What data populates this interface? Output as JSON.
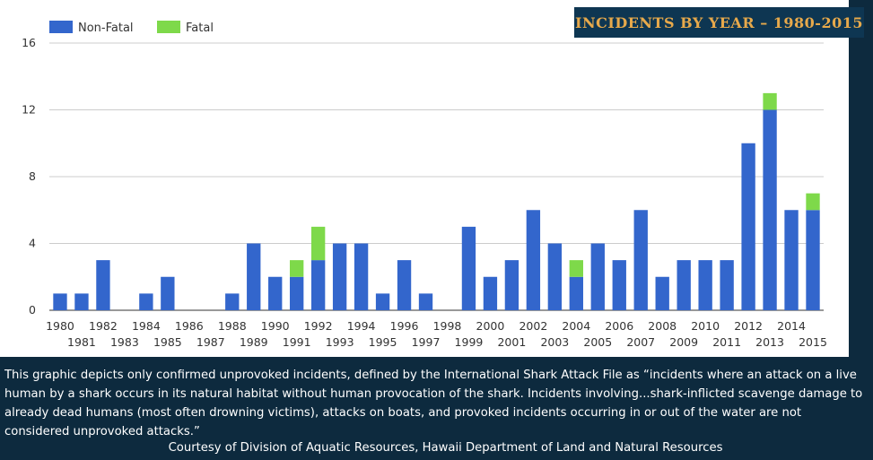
{
  "title": "INCIDENTS BY YEAR – 1980-2015",
  "caption": "This graphic depicts only confirmed unprovoked incidents, defined by the International Shark Attack File as “incidents where an attack on a live human by a shark occurs in its natural habitat without human provocation of the shark. Incidents involving...shark-inflicted scavenge damage to already dead humans (most often drowning victims), attacks on boats, and provoked incidents occurring in or out of the water are not considered unprovoked attacks.”",
  "courtesy": "Courtesy of Division of Aquatic Resources, Hawaii Department of Land and Natural Resources",
  "colors": {
    "background": "#0d2a3e",
    "non_fatal": "#3366cc",
    "fatal": "#7ed94a",
    "title_text": "#e7a94b"
  },
  "chart_data": {
    "type": "bar",
    "stacked": true,
    "title": "INCIDENTS BY YEAR – 1980-2015",
    "xlabel": "",
    "ylabel": "",
    "ylim": [
      0,
      16
    ],
    "yticks": [
      0,
      4,
      8,
      12,
      16
    ],
    "grid": true,
    "legend": "top-left",
    "categories": [
      "1980",
      "1981",
      "1982",
      "1983",
      "1984",
      "1985",
      "1986",
      "1987",
      "1988",
      "1989",
      "1990",
      "1991",
      "1992",
      "1993",
      "1994",
      "1995",
      "1996",
      "1997",
      "1998",
      "1999",
      "2000",
      "2001",
      "2002",
      "2003",
      "2004",
      "2005",
      "2006",
      "2007",
      "2008",
      "2009",
      "2010",
      "2011",
      "2012",
      "2013",
      "2014",
      "2015"
    ],
    "series": [
      {
        "name": "Non-Fatal",
        "color": "#3366cc",
        "values": [
          1,
          1,
          3,
          0,
          1,
          2,
          0,
          0,
          1,
          4,
          2,
          2,
          3,
          4,
          4,
          1,
          3,
          1,
          0,
          5,
          2,
          3,
          6,
          4,
          2,
          4,
          3,
          6,
          2,
          3,
          3,
          3,
          10,
          12,
          6,
          6
        ]
      },
      {
        "name": "Fatal",
        "color": "#7ed94a",
        "values": [
          0,
          0,
          0,
          0,
          0,
          0,
          0,
          0,
          0,
          0,
          0,
          1,
          2,
          0,
          0,
          0,
          0,
          0,
          0,
          0,
          0,
          0,
          0,
          0,
          1,
          0,
          0,
          0,
          0,
          0,
          0,
          0,
          0,
          1,
          0,
          1
        ]
      }
    ]
  }
}
